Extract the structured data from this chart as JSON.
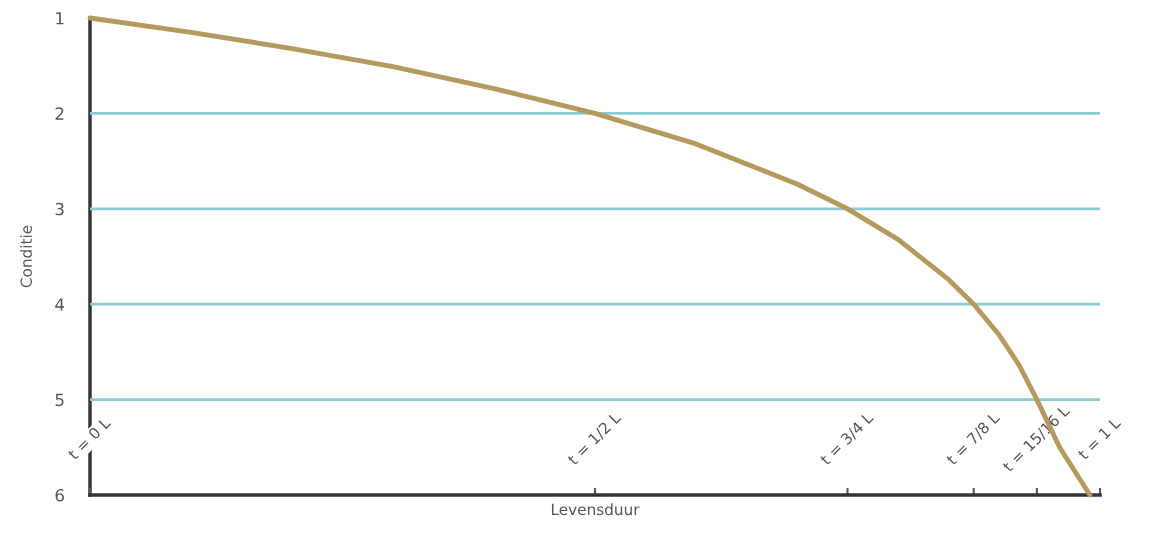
{
  "chart_data": {
    "type": "line",
    "xlabel": "Levensduur",
    "ylabel": "Conditie",
    "x": [
      0,
      0.1,
      0.2,
      0.3,
      0.4,
      0.5,
      0.6,
      0.7,
      0.75,
      0.8,
      0.85,
      0.875,
      0.9,
      0.92,
      0.9375,
      0.96,
      0.99
    ],
    "series": [
      {
        "color": "#b59a5f",
        "values": [
          1,
          1.15,
          1.32,
          1.51,
          1.74,
          2,
          2.32,
          2.74,
          3,
          3.32,
          3.74,
          4,
          4.32,
          4.64,
          5,
          5.5,
          6
        ]
      }
    ],
    "xlim": [
      0,
      1
    ],
    "ylim": [
      6,
      1
    ],
    "xticks": [
      {
        "value": 0,
        "label": "t = 0 L"
      },
      {
        "value": 0.5,
        "label": "t = 1/2 L"
      },
      {
        "value": 0.75,
        "label": "t = 3/4 L"
      },
      {
        "value": 0.875,
        "label": "t = 7/8 L"
      },
      {
        "value": 0.9375,
        "label": "t = 15/16 L"
      },
      {
        "value": 1,
        "label": "t = 1 L"
      }
    ],
    "yticks": [
      1,
      2,
      3,
      4,
      5,
      6
    ],
    "ref_lines": [
      {
        "axis": "y",
        "value": 2,
        "color": "#8ccbd3"
      },
      {
        "axis": "y",
        "value": 3,
        "color": "#8ccbd3"
      },
      {
        "axis": "y",
        "value": 4,
        "color": "#8ccbd3"
      },
      {
        "axis": "y",
        "value": 5,
        "color": "#8ccbd3"
      }
    ],
    "grid": false,
    "marker": "none",
    "line_style": "solid"
  }
}
